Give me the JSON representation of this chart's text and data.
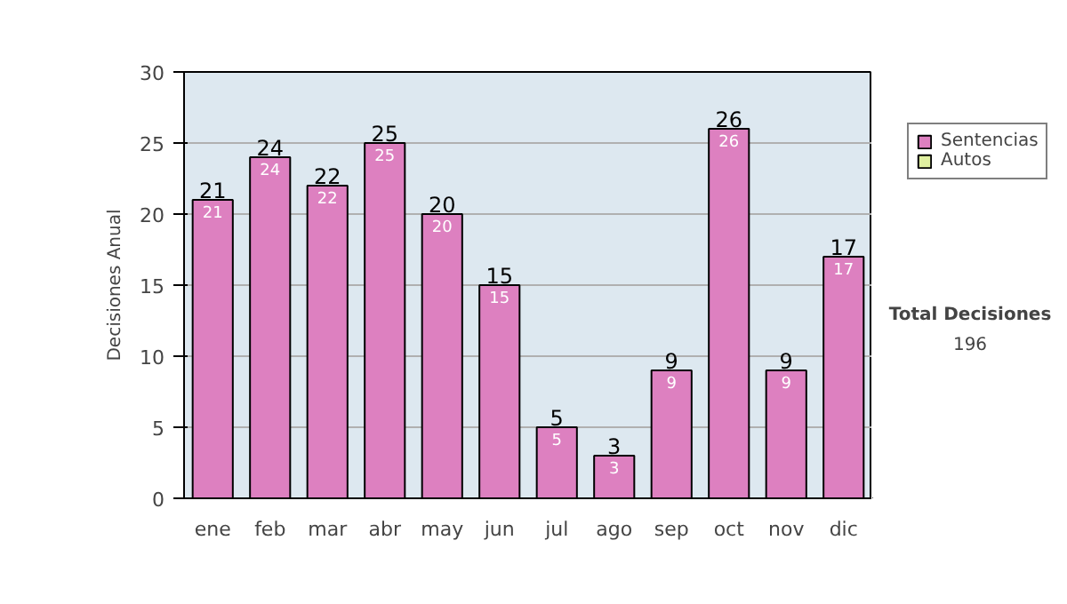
{
  "chart_data": {
    "type": "bar",
    "stacked": true,
    "ylabel": "Decisiones Anual",
    "categories": [
      "ene",
      "feb",
      "mar",
      "abr",
      "may",
      "jun",
      "jul",
      "ago",
      "sep",
      "oct",
      "nov",
      "dic"
    ],
    "series": [
      {
        "name": "Sentencias",
        "color": "#dd80c0",
        "values": [
          21,
          24,
          22,
          25,
          20,
          15,
          5,
          3,
          9,
          26,
          9,
          17
        ],
        "value_labels": [
          "21",
          "24",
          "22",
          "25",
          "20",
          "15",
          "5",
          "3",
          "9",
          "26",
          "9",
          "17"
        ]
      },
      {
        "name": "Autos",
        "color": "#e0f0a0",
        "values": [
          0,
          0,
          0,
          0,
          0,
          0,
          0,
          0,
          0,
          0,
          0,
          0
        ]
      }
    ],
    "totals": [
      "21",
      "24",
      "22",
      "25",
      "20",
      "15",
      "5",
      "3",
      "9",
      "26",
      "9",
      "17"
    ],
    "ylim": [
      0,
      30
    ],
    "yticks": [
      0,
      5,
      10,
      15,
      20,
      25,
      30
    ],
    "grid": "y",
    "legend": "right",
    "annotations": [
      "Total Decisiones",
      "196"
    ]
  }
}
